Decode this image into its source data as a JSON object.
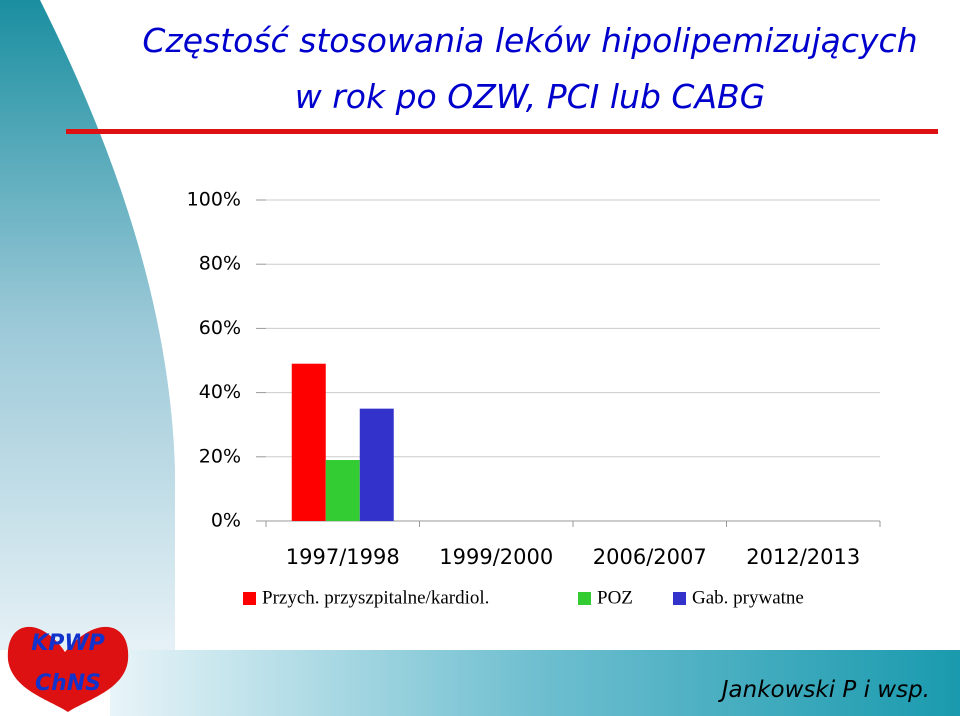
{
  "slide": {
    "title_lines": [
      "Częstość stosowania leków hipolipemizujących",
      "w rok po OZW, PCI lub CABG"
    ],
    "footer": "Jankowski P i wsp.",
    "logo": [
      "KPWP",
      "ChNS"
    ]
  },
  "chart_data": {
    "type": "bar",
    "categories": [
      "1997/1998",
      "1999/2000",
      "2006/2007",
      "2012/2013"
    ],
    "series": [
      {
        "name": "Przych. przyszpitalne/kardiol.",
        "color": "#ff0000",
        "values": [
          49,
          null,
          null,
          null
        ]
      },
      {
        "name": "POZ",
        "color": "#33cc33",
        "values": [
          19,
          null,
          null,
          null
        ]
      },
      {
        "name": "Gab. prywatne",
        "color": "#3333cc",
        "values": [
          35,
          null,
          null,
          null
        ]
      }
    ],
    "ylim": [
      0,
      100
    ],
    "yticks": [
      {
        "value": 0,
        "label": "0%"
      },
      {
        "value": 20,
        "label": "20%"
      },
      {
        "value": 40,
        "label": "40%"
      },
      {
        "value": 60,
        "label": "60%"
      },
      {
        "value": 80,
        "label": "80%"
      },
      {
        "value": 100,
        "label": "100%"
      }
    ],
    "grid": true
  }
}
